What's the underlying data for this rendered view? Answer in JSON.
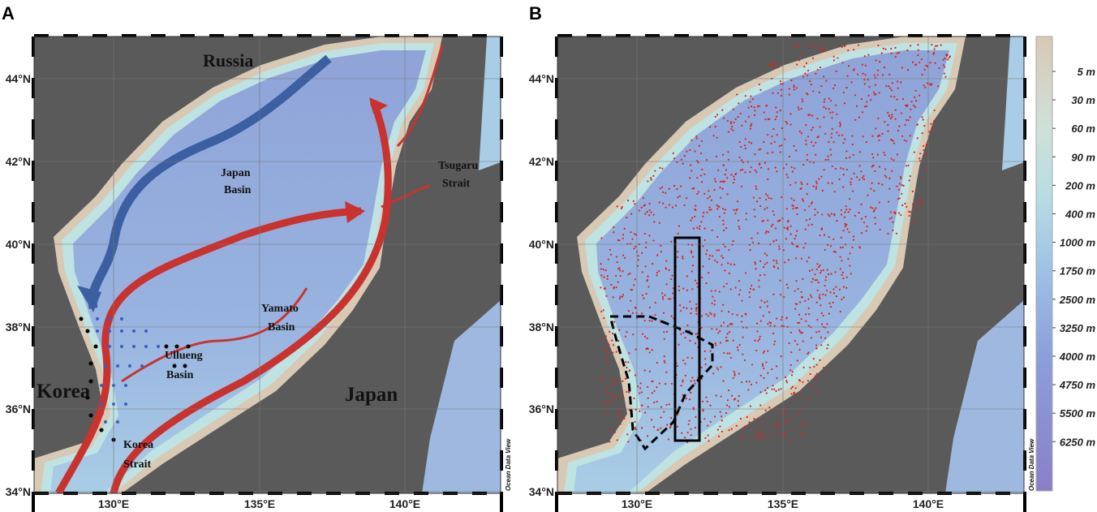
{
  "panels": [
    {
      "label": "A",
      "lat_labels": [
        "44°N",
        "42°N",
        "40°N",
        "38°N",
        "36°N",
        "34°N"
      ],
      "lon_labels": [
        "130°E",
        "135°E",
        "140°E"
      ],
      "places": {
        "russia": "Russia",
        "japan_basin": [
          "Japan",
          "Basin"
        ],
        "tsugaru": [
          "Tsugaru",
          "Strait"
        ],
        "yamato": [
          "Yamato",
          "Basin"
        ],
        "ullueng": [
          "Ullueng",
          "Basin"
        ],
        "korea": "Korea",
        "japan": "Japan",
        "korea_strait": [
          "Korea",
          "Strait"
        ]
      },
      "credit": "Ocean Data View"
    },
    {
      "label": "B",
      "lat_labels": [
        "44°N",
        "42°N",
        "40°N",
        "38°N",
        "36°N",
        "34°N"
      ],
      "lon_labels": [
        "130°E",
        "135°E",
        "140°E"
      ],
      "credit": "Ocean Data View"
    }
  ],
  "colorbar": {
    "labels": [
      "5 m",
      "30 m",
      "60 m",
      "90 m",
      "200 m",
      "400 m",
      "1000 m",
      "1750 m",
      "2500 m",
      "3250 m",
      "4000 m",
      "4750 m",
      "5500 m",
      "6250 m"
    ]
  }
}
